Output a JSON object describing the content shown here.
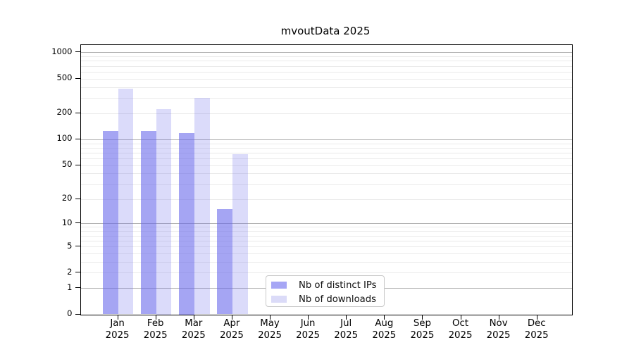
{
  "title": "mvoutData 2025",
  "chart_data": {
    "type": "bar",
    "title": "mvoutData 2025",
    "categories": [
      {
        "month": "Jan",
        "year": "2025"
      },
      {
        "month": "Feb",
        "year": "2025"
      },
      {
        "month": "Mar",
        "year": "2025"
      },
      {
        "month": "Apr",
        "year": "2025"
      },
      {
        "month": "May",
        "year": "2025"
      },
      {
        "month": "Jun",
        "year": "2025"
      },
      {
        "month": "Jul",
        "year": "2025"
      },
      {
        "month": "Aug",
        "year": "2025"
      },
      {
        "month": "Sep",
        "year": "2025"
      },
      {
        "month": "Oct",
        "year": "2025"
      },
      {
        "month": "Nov",
        "year": "2025"
      },
      {
        "month": "Dec",
        "year": "2025"
      }
    ],
    "series": [
      {
        "name": "Nb of distinct IPs",
        "values": [
          124,
          124,
          118,
          15,
          null,
          null,
          null,
          null,
          null,
          null,
          null,
          null
        ],
        "fill": "rgba(100,100,235,0.58)",
        "legend_color": "#a6a6f5"
      },
      {
        "name": "Nb of downloads",
        "values": [
          384,
          223,
          302,
          67,
          null,
          null,
          null,
          null,
          null,
          null,
          null,
          null
        ],
        "fill": "rgba(100,100,235,0.235)",
        "legend_color": "#dbdbf8"
      }
    ],
    "yscale": "log1p",
    "yticks": [
      {
        "label": "1000",
        "value": 1000
      },
      {
        "label": "500",
        "value": 500
      },
      {
        "label": "200",
        "value": 200
      },
      {
        "label": "100",
        "value": 100
      },
      {
        "label": "50",
        "value": 50
      },
      {
        "label": "20",
        "value": 20
      },
      {
        "label": "10",
        "value": 10
      },
      {
        "label": "5",
        "value": 5
      },
      {
        "label": "2",
        "value": 2
      },
      {
        "label": "1",
        "value": 1
      },
      {
        "label": "0",
        "value": 0
      }
    ],
    "minor_gridline_values": [
      3,
      4,
      6,
      7,
      8,
      9,
      30,
      40,
      60,
      70,
      80,
      90,
      300,
      400,
      600,
      700,
      800,
      900
    ],
    "ylim": [
      0,
      1215
    ],
    "xlabel": "",
    "ylabel": "",
    "grid": true,
    "legend_position": "lower center"
  },
  "colors": {
    "grid_major": "#b2b2b2",
    "grid_minor": "#eaeaea",
    "axis": "#000000",
    "background": "#ffffff"
  }
}
